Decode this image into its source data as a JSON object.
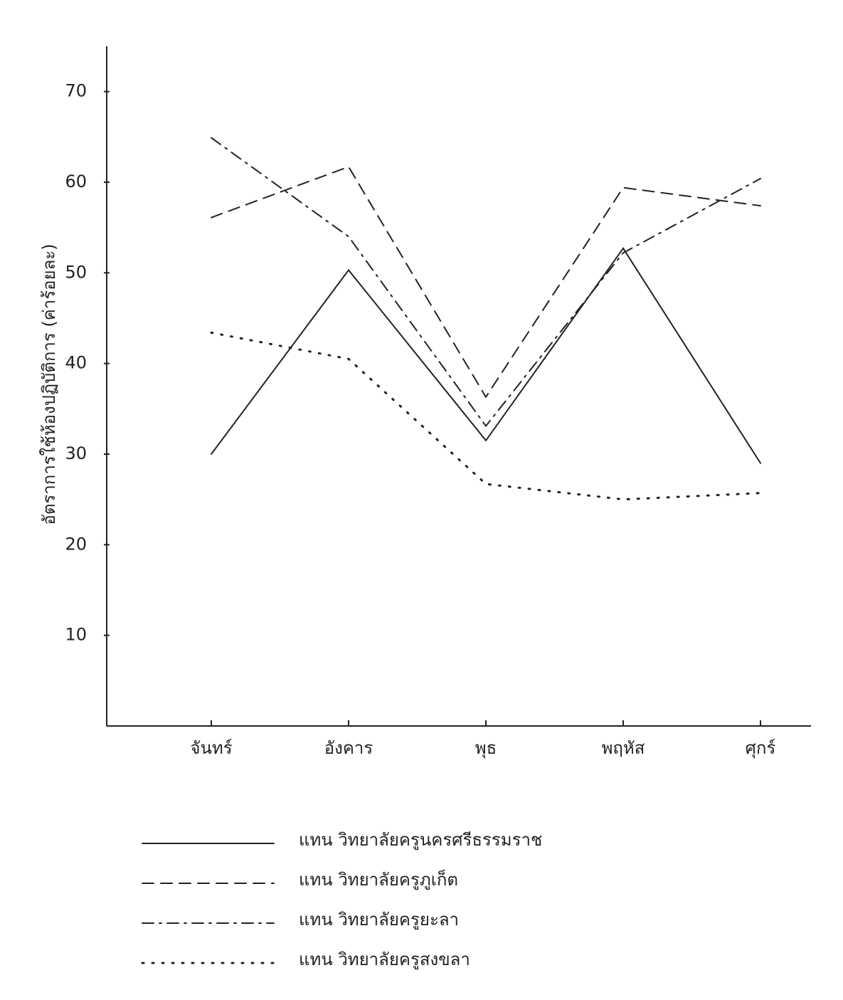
{
  "chart_data": {
    "type": "line",
    "ylabel": "อัตราการใช้ห้องปฏิบัติการ (ค่าร้อยละ)",
    "categories": [
      "จันทร์",
      "อังคาร",
      "พุธ",
      "พฤหัส",
      "ศุกร์"
    ],
    "series": [
      {
        "name": "แทน วิทยาลัยครูนครศรีธรรมราช",
        "color": "#222222",
        "style": "solid",
        "values": [
          30,
          50.3,
          31.5,
          52.7,
          29
        ]
      },
      {
        "name": "แทน วิทยาลัยครูภูเก็ต",
        "color": "#222222",
        "style": "dashed",
        "values": [
          56.1,
          61.7,
          36.3,
          59.4,
          57.4
        ]
      },
      {
        "name": "แทน วิทยาลัยครูยะลา",
        "color": "#222222",
        "style": "dashdot",
        "values": [
          64.9,
          54,
          33.1,
          52.2,
          60.4
        ]
      },
      {
        "name": "แทน วิทยาลัยครูสงขลา",
        "color": "#222222",
        "style": "dotted",
        "values": [
          43.4,
          40.5,
          26.7,
          25,
          25.7
        ]
      }
    ],
    "ylim": [
      0,
      75
    ],
    "yticks": [
      10,
      20,
      30,
      40,
      50,
      60,
      70
    ],
    "grid": false
  }
}
